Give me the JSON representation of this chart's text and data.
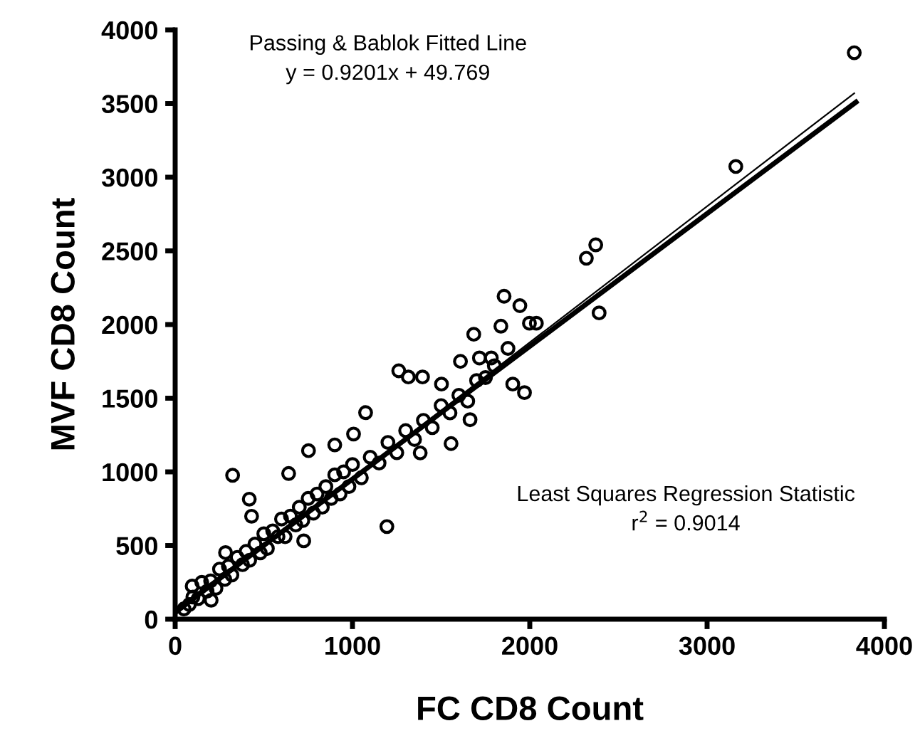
{
  "chart_data": {
    "type": "scatter",
    "xlabel": "FC CD8 Count",
    "ylabel": "MVF CD8 Count",
    "annotations": [
      "Passing & Bablok Fitted Line",
      "y = 0.9201x + 49.769",
      "Least Squares Regression Statistic",
      "r$^{2}$ = 0.9014"
    ],
    "xlim": [
      0,
      4000
    ],
    "ylim": [
      0,
      4000
    ],
    "xticks": [
      0,
      1000,
      2000,
      3000,
      4000
    ],
    "yticks": [
      0,
      500,
      1000,
      1500,
      2000,
      2500,
      3000,
      3500,
      4000
    ],
    "grid": false,
    "legend": false,
    "series": [
      {
        "marker": "circle",
        "color": "#000000",
        "x": [
          3830,
          3162,
          2372,
          2319,
          2391,
          324,
          418,
          431,
          1194,
          1855,
          1944,
          1684,
          1837,
          1998,
          2037,
          1970,
          1904,
          1877,
          1783,
          1716,
          1609,
          1663,
          1556,
          1382,
          1261,
          1315,
          1395,
          1502,
          1074,
          1006,
          900,
          752,
          640,
          725,
          203,
          284,
          96,
          50,
          80,
          100,
          130,
          150,
          180,
          200,
          230,
          250,
          280,
          300,
          320,
          350,
          380,
          400,
          420,
          450,
          480,
          500,
          520,
          550,
          580,
          600,
          620,
          650,
          680,
          700,
          720,
          750,
          780,
          800,
          830,
          850,
          880,
          900,
          930,
          950,
          980,
          1000,
          1050,
          1100,
          1150,
          1200,
          1250,
          1300,
          1350,
          1400,
          1450,
          1500,
          1550,
          1600,
          1650,
          1700,
          1750,
          1800
        ],
        "values": [
          3845,
          3073,
          2541,
          2450,
          2079,
          977,
          815,
          699,
          629,
          2192,
          2128,
          1934,
          1989,
          2009,
          2009,
          1538,
          1596,
          1838,
          1773,
          1773,
          1750,
          1354,
          1192,
          1129,
          1686,
          1644,
          1644,
          1596,
          1402,
          1257,
          1183,
          1144,
          989,
          532,
          129,
          452,
          225,
          70,
          100,
          150,
          140,
          250,
          190,
          260,
          210,
          340,
          270,
          360,
          300,
          420,
          370,
          460,
          400,
          510,
          450,
          580,
          480,
          600,
          560,
          680,
          560,
          700,
          640,
          760,
          670,
          820,
          720,
          850,
          760,
          900,
          820,
          980,
          850,
          1000,
          900,
          1050,
          960,
          1100,
          1060,
          1200,
          1130,
          1280,
          1220,
          1350,
          1300,
          1450,
          1400,
          1520,
          1480,
          1620,
          1640,
          1720
        ]
      },
      {
        "type": "line",
        "color": "#000000",
        "line_style": "solid",
        "x": [
          0,
          3840
        ],
        "values": [
          50,
          3510
        ]
      },
      {
        "type": "line",
        "color": "#000000",
        "line_style": "solid",
        "x": [
          0,
          3830
        ],
        "values": [
          30,
          3570
        ]
      }
    ]
  }
}
